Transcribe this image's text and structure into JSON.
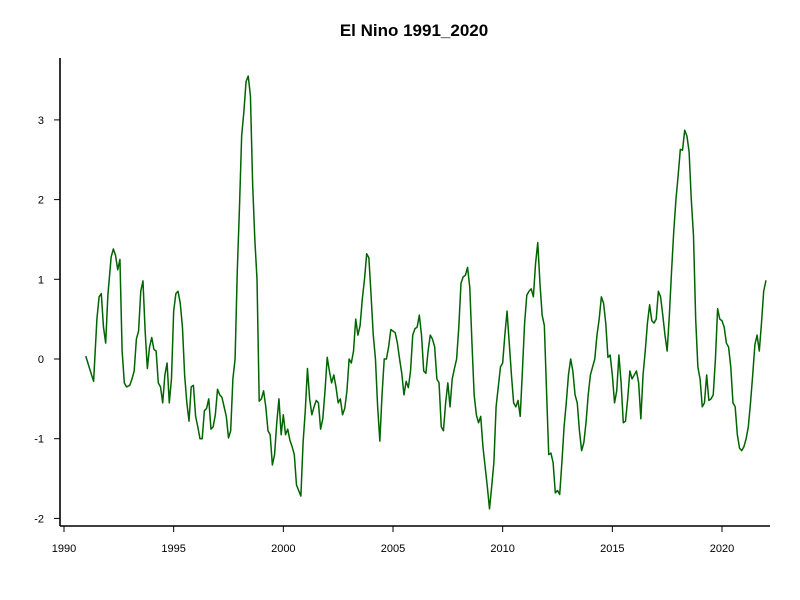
{
  "chart_data": {
    "type": "line",
    "title": "El Nino 1991_2020",
    "xlabel": "",
    "ylabel": "",
    "xlim": [
      1990,
      2022
    ],
    "ylim": [
      -2.1,
      3.8
    ],
    "x_ticks": [
      1990,
      1995,
      2000,
      2005,
      2010,
      2015,
      2020
    ],
    "y_ticks": [
      -2,
      -1,
      0,
      1,
      2,
      3
    ],
    "grid": false,
    "line_color": "#006400",
    "series": [
      {
        "values": [
          [
            1991.0,
            0.03
          ],
          [
            1991.2,
            -0.15
          ],
          [
            1991.35,
            -0.28
          ],
          [
            1991.5,
            0.5
          ],
          [
            1991.6,
            0.78
          ],
          [
            1991.7,
            0.82
          ],
          [
            1991.8,
            0.4
          ],
          [
            1991.9,
            0.2
          ],
          [
            1992.0,
            0.8
          ],
          [
            1992.15,
            1.28
          ],
          [
            1992.25,
            1.38
          ],
          [
            1992.35,
            1.3
          ],
          [
            1992.45,
            1.12
          ],
          [
            1992.55,
            1.25
          ],
          [
            1992.65,
            0.1
          ],
          [
            1992.75,
            -0.3
          ],
          [
            1992.85,
            -0.35
          ],
          [
            1993.0,
            -0.33
          ],
          [
            1993.1,
            -0.25
          ],
          [
            1993.2,
            -0.15
          ],
          [
            1993.3,
            0.25
          ],
          [
            1993.4,
            0.35
          ],
          [
            1993.5,
            0.85
          ],
          [
            1993.6,
            0.98
          ],
          [
            1993.7,
            0.35
          ],
          [
            1993.8,
            -0.12
          ],
          [
            1993.9,
            0.15
          ],
          [
            1994.0,
            0.27
          ],
          [
            1994.1,
            0.12
          ],
          [
            1994.2,
            0.1
          ],
          [
            1994.3,
            -0.3
          ],
          [
            1994.4,
            -0.35
          ],
          [
            1994.5,
            -0.55
          ],
          [
            1994.6,
            -0.2
          ],
          [
            1994.7,
            -0.05
          ],
          [
            1994.8,
            -0.55
          ],
          [
            1994.9,
            -0.25
          ],
          [
            1995.0,
            0.6
          ],
          [
            1995.1,
            0.82
          ],
          [
            1995.2,
            0.85
          ],
          [
            1995.3,
            0.7
          ],
          [
            1995.4,
            0.4
          ],
          [
            1995.5,
            -0.2
          ],
          [
            1995.6,
            -0.55
          ],
          [
            1995.7,
            -0.78
          ],
          [
            1995.8,
            -0.35
          ],
          [
            1995.9,
            -0.33
          ],
          [
            1996.0,
            -0.72
          ],
          [
            1996.1,
            -0.85
          ],
          [
            1996.2,
            -1.0
          ],
          [
            1996.3,
            -1.0
          ],
          [
            1996.4,
            -0.65
          ],
          [
            1996.5,
            -0.62
          ],
          [
            1996.6,
            -0.5
          ],
          [
            1996.7,
            -0.88
          ],
          [
            1996.8,
            -0.85
          ],
          [
            1996.9,
            -0.7
          ],
          [
            1997.0,
            -0.38
          ],
          [
            1997.1,
            -0.45
          ],
          [
            1997.2,
            -0.48
          ],
          [
            1997.3,
            -0.6
          ],
          [
            1997.4,
            -0.72
          ],
          [
            1997.5,
            -0.99
          ],
          [
            1997.6,
            -0.9
          ],
          [
            1997.7,
            -0.25
          ],
          [
            1997.8,
            0.0
          ],
          [
            1997.9,
            1.1
          ],
          [
            1998.0,
            1.9
          ],
          [
            1998.1,
            2.8
          ],
          [
            1998.2,
            3.1
          ],
          [
            1998.3,
            3.48
          ],
          [
            1998.4,
            3.55
          ],
          [
            1998.5,
            3.3
          ],
          [
            1998.6,
            2.2
          ],
          [
            1998.7,
            1.5
          ],
          [
            1998.8,
            1.0
          ],
          [
            1998.9,
            -0.53
          ],
          [
            1999.0,
            -0.5
          ],
          [
            1999.1,
            -0.4
          ],
          [
            1999.2,
            -0.6
          ],
          [
            1999.3,
            -0.9
          ],
          [
            1999.4,
            -0.95
          ],
          [
            1999.5,
            -1.33
          ],
          [
            1999.6,
            -1.2
          ],
          [
            1999.7,
            -0.8
          ],
          [
            1999.8,
            -0.5
          ],
          [
            1999.9,
            -0.95
          ],
          [
            2000.0,
            -0.7
          ],
          [
            2000.1,
            -0.95
          ],
          [
            2000.2,
            -0.88
          ],
          [
            2000.3,
            -1.02
          ],
          [
            2000.4,
            -1.1
          ],
          [
            2000.5,
            -1.2
          ],
          [
            2000.6,
            -1.58
          ],
          [
            2000.7,
            -1.65
          ],
          [
            2000.8,
            -1.72
          ],
          [
            2000.9,
            -1.05
          ],
          [
            2001.0,
            -0.65
          ],
          [
            2001.1,
            -0.12
          ],
          [
            2001.2,
            -0.5
          ],
          [
            2001.3,
            -0.7
          ],
          [
            2001.4,
            -0.6
          ],
          [
            2001.5,
            -0.52
          ],
          [
            2001.6,
            -0.55
          ],
          [
            2001.7,
            -0.88
          ],
          [
            2001.8,
            -0.75
          ],
          [
            2001.9,
            -0.4
          ],
          [
            2002.0,
            0.02
          ],
          [
            2002.1,
            -0.15
          ],
          [
            2002.2,
            -0.3
          ],
          [
            2002.3,
            -0.2
          ],
          [
            2002.4,
            -0.35
          ],
          [
            2002.5,
            -0.55
          ],
          [
            2002.6,
            -0.5
          ],
          [
            2002.7,
            -0.7
          ],
          [
            2002.8,
            -0.62
          ],
          [
            2002.9,
            -0.4
          ],
          [
            2003.0,
            0.0
          ],
          [
            2003.1,
            -0.05
          ],
          [
            2003.2,
            0.1
          ],
          [
            2003.3,
            0.5
          ],
          [
            2003.4,
            0.3
          ],
          [
            2003.5,
            0.42
          ],
          [
            2003.6,
            0.75
          ],
          [
            2003.7,
            1.0
          ],
          [
            2003.8,
            1.32
          ],
          [
            2003.9,
            1.27
          ],
          [
            2004.0,
            0.8
          ],
          [
            2004.1,
            0.3
          ],
          [
            2004.2,
            0.0
          ],
          [
            2004.3,
            -0.6
          ],
          [
            2004.4,
            -1.03
          ],
          [
            2004.5,
            -0.45
          ],
          [
            2004.6,
            0.0
          ],
          [
            2004.7,
            0.0
          ],
          [
            2004.8,
            0.15
          ],
          [
            2004.9,
            0.37
          ],
          [
            2005.0,
            0.35
          ],
          [
            2005.1,
            0.33
          ],
          [
            2005.2,
            0.2
          ],
          [
            2005.3,
            0.0
          ],
          [
            2005.4,
            -0.18
          ],
          [
            2005.5,
            -0.45
          ],
          [
            2005.6,
            -0.28
          ],
          [
            2005.7,
            -0.36
          ],
          [
            2005.8,
            -0.15
          ],
          [
            2005.9,
            0.3
          ],
          [
            2006.0,
            0.38
          ],
          [
            2006.1,
            0.4
          ],
          [
            2006.2,
            0.55
          ],
          [
            2006.3,
            0.3
          ],
          [
            2006.4,
            -0.15
          ],
          [
            2006.5,
            -0.18
          ],
          [
            2006.6,
            0.1
          ],
          [
            2006.7,
            0.3
          ],
          [
            2006.8,
            0.25
          ],
          [
            2006.9,
            0.15
          ],
          [
            2007.0,
            -0.25
          ],
          [
            2007.1,
            -0.3
          ],
          [
            2007.2,
            -0.85
          ],
          [
            2007.3,
            -0.9
          ],
          [
            2007.4,
            -0.55
          ],
          [
            2007.5,
            -0.3
          ],
          [
            2007.6,
            -0.6
          ],
          [
            2007.7,
            -0.25
          ],
          [
            2007.8,
            -0.12
          ],
          [
            2007.9,
            0.0
          ],
          [
            2008.0,
            0.4
          ],
          [
            2008.1,
            0.95
          ],
          [
            2008.2,
            1.03
          ],
          [
            2008.3,
            1.05
          ],
          [
            2008.4,
            1.15
          ],
          [
            2008.5,
            0.9
          ],
          [
            2008.6,
            0.2
          ],
          [
            2008.7,
            -0.45
          ],
          [
            2008.8,
            -0.7
          ],
          [
            2008.9,
            -0.8
          ],
          [
            2009.0,
            -0.72
          ],
          [
            2009.1,
            -1.1
          ],
          [
            2009.2,
            -1.35
          ],
          [
            2009.3,
            -1.6
          ],
          [
            2009.4,
            -1.88
          ],
          [
            2009.5,
            -1.6
          ],
          [
            2009.6,
            -1.3
          ],
          [
            2009.7,
            -0.6
          ],
          [
            2009.8,
            -0.35
          ],
          [
            2009.9,
            -0.1
          ],
          [
            2010.0,
            -0.05
          ],
          [
            2010.1,
            0.3
          ],
          [
            2010.2,
            0.6
          ],
          [
            2010.3,
            0.2
          ],
          [
            2010.4,
            -0.2
          ],
          [
            2010.5,
            -0.55
          ],
          [
            2010.6,
            -0.6
          ],
          [
            2010.7,
            -0.52
          ],
          [
            2010.8,
            -0.72
          ],
          [
            2010.9,
            -0.15
          ],
          [
            2011.0,
            0.45
          ],
          [
            2011.1,
            0.8
          ],
          [
            2011.2,
            0.85
          ],
          [
            2011.3,
            0.88
          ],
          [
            2011.4,
            0.78
          ],
          [
            2011.5,
            1.2
          ],
          [
            2011.6,
            1.46
          ],
          [
            2011.7,
            0.95
          ],
          [
            2011.8,
            0.55
          ],
          [
            2011.9,
            0.42
          ],
          [
            2012.0,
            -0.4
          ],
          [
            2012.1,
            -1.2
          ],
          [
            2012.2,
            -1.18
          ],
          [
            2012.3,
            -1.3
          ],
          [
            2012.4,
            -1.68
          ],
          [
            2012.5,
            -1.65
          ],
          [
            2012.6,
            -1.7
          ],
          [
            2012.7,
            -1.3
          ],
          [
            2012.8,
            -0.85
          ],
          [
            2012.9,
            -0.55
          ],
          [
            2013.0,
            -0.2
          ],
          [
            2013.1,
            0.0
          ],
          [
            2013.2,
            -0.15
          ],
          [
            2013.3,
            -0.45
          ],
          [
            2013.4,
            -0.55
          ],
          [
            2013.5,
            -0.9
          ],
          [
            2013.6,
            -1.15
          ],
          [
            2013.7,
            -1.05
          ],
          [
            2013.8,
            -0.8
          ],
          [
            2013.9,
            -0.45
          ],
          [
            2014.0,
            -0.2
          ],
          [
            2014.1,
            -0.1
          ],
          [
            2014.2,
            0.0
          ],
          [
            2014.3,
            0.3
          ],
          [
            2014.4,
            0.5
          ],
          [
            2014.5,
            0.78
          ],
          [
            2014.6,
            0.7
          ],
          [
            2014.7,
            0.45
          ],
          [
            2014.8,
            0.02
          ],
          [
            2014.9,
            0.05
          ],
          [
            2015.0,
            -0.2
          ],
          [
            2015.1,
            -0.55
          ],
          [
            2015.2,
            -0.4
          ],
          [
            2015.3,
            0.05
          ],
          [
            2015.4,
            -0.3
          ],
          [
            2015.5,
            -0.8
          ],
          [
            2015.6,
            -0.78
          ],
          [
            2015.7,
            -0.5
          ],
          [
            2015.8,
            -0.15
          ],
          [
            2015.9,
            -0.25
          ],
          [
            2016.0,
            -0.2
          ],
          [
            2016.1,
            -0.15
          ],
          [
            2016.2,
            -0.3
          ],
          [
            2016.3,
            -0.75
          ],
          [
            2016.4,
            -0.2
          ],
          [
            2016.5,
            0.1
          ],
          [
            2016.6,
            0.45
          ],
          [
            2016.7,
            0.68
          ],
          [
            2016.8,
            0.48
          ],
          [
            2016.9,
            0.45
          ],
          [
            2017.0,
            0.5
          ],
          [
            2017.1,
            0.85
          ],
          [
            2017.2,
            0.78
          ],
          [
            2017.3,
            0.55
          ],
          [
            2017.4,
            0.3
          ],
          [
            2017.5,
            0.1
          ],
          [
            2017.6,
            0.55
          ],
          [
            2017.7,
            1.1
          ],
          [
            2017.8,
            1.6
          ],
          [
            2017.9,
            2.0
          ],
          [
            2018.0,
            2.3
          ],
          [
            2018.1,
            2.63
          ],
          [
            2018.2,
            2.62
          ],
          [
            2018.3,
            2.87
          ],
          [
            2018.4,
            2.8
          ],
          [
            2018.5,
            2.6
          ],
          [
            2018.6,
            2.0
          ],
          [
            2018.7,
            1.55
          ],
          [
            2018.8,
            0.5
          ],
          [
            2018.9,
            -0.1
          ],
          [
            2019.0,
            -0.25
          ],
          [
            2019.1,
            -0.6
          ],
          [
            2019.2,
            -0.55
          ],
          [
            2019.3,
            -0.2
          ],
          [
            2019.4,
            -0.52
          ],
          [
            2019.5,
            -0.5
          ],
          [
            2019.6,
            -0.45
          ],
          [
            2019.7,
            0.0
          ],
          [
            2019.8,
            0.63
          ],
          [
            2019.9,
            0.5
          ],
          [
            2020.0,
            0.48
          ],
          [
            2020.1,
            0.4
          ],
          [
            2020.2,
            0.2
          ],
          [
            2020.3,
            0.15
          ],
          [
            2020.4,
            -0.1
          ],
          [
            2020.5,
            -0.55
          ],
          [
            2020.6,
            -0.6
          ],
          [
            2020.7,
            -0.95
          ],
          [
            2020.8,
            -1.12
          ],
          [
            2020.9,
            -1.15
          ],
          [
            2021.0,
            -1.1
          ],
          [
            2021.1,
            -1.0
          ],
          [
            2021.2,
            -0.85
          ],
          [
            2021.3,
            -0.55
          ],
          [
            2021.4,
            -0.2
          ],
          [
            2021.5,
            0.18
          ],
          [
            2021.6,
            0.3
          ],
          [
            2021.7,
            0.1
          ],
          [
            2021.8,
            0.45
          ],
          [
            2021.9,
            0.85
          ],
          [
            2022.0,
            0.98
          ]
        ]
      }
    ]
  }
}
